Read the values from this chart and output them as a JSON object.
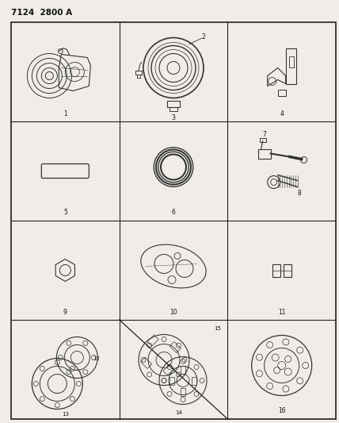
{
  "title": "7124  2800 A",
  "background": "#f0ede8",
  "grid_color": "#333333",
  "line_color": "#222222",
  "text_color": "#111111",
  "part_color": "#333333",
  "rows": 4,
  "cols": 3,
  "figsize": [
    4.28,
    5.33
  ],
  "dpi": 100
}
